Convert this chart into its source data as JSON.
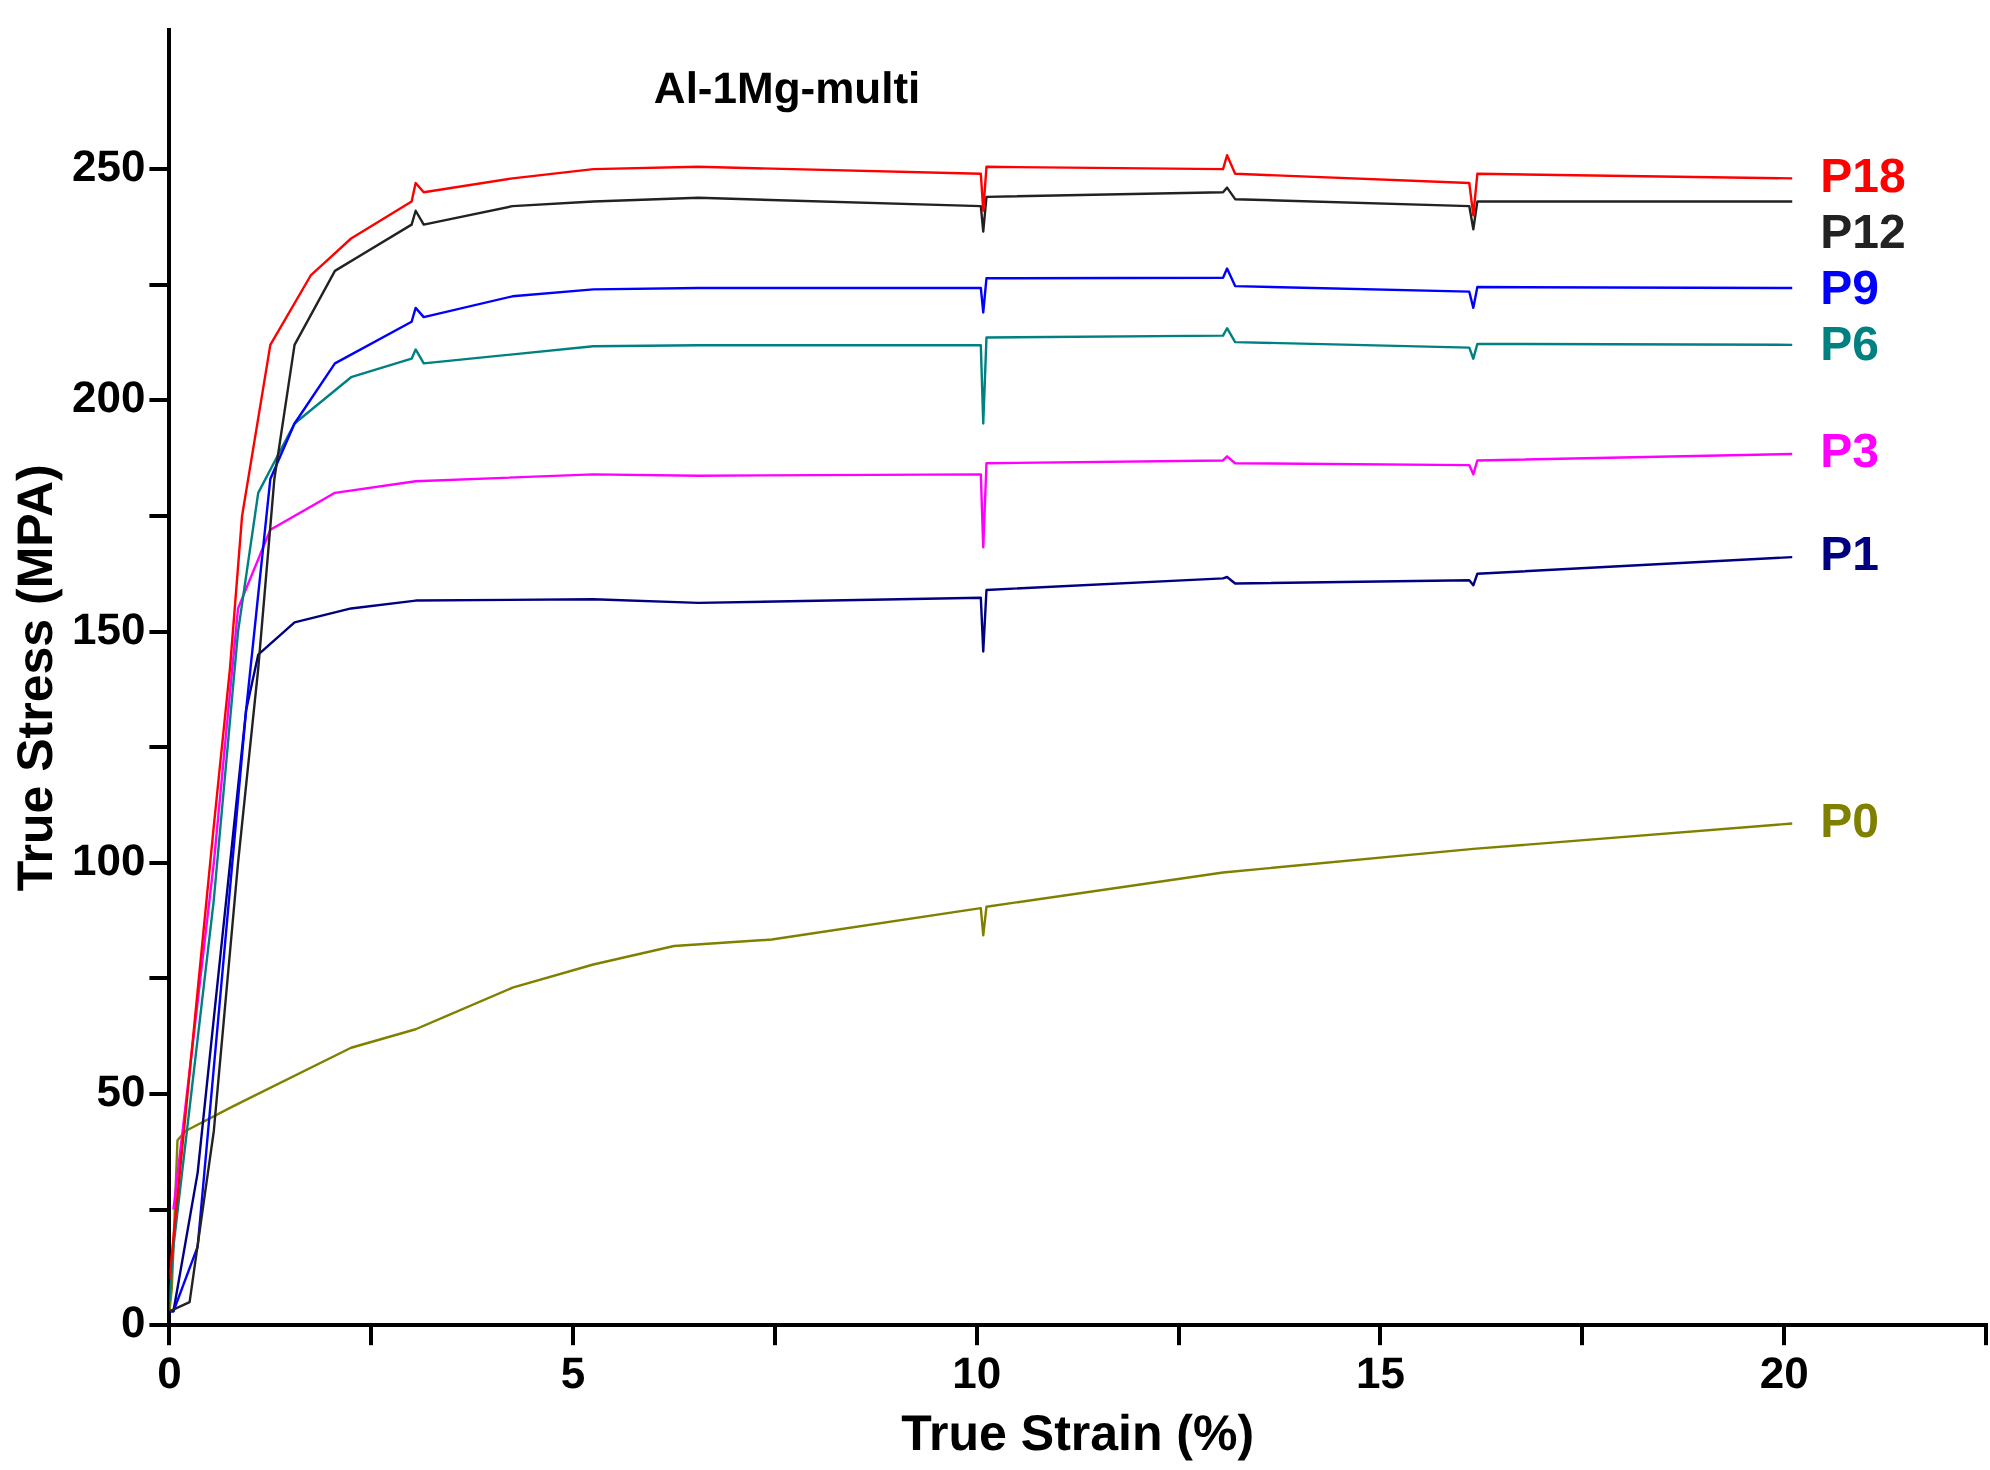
{
  "chart_data": {
    "type": "line",
    "title": "Al-1Mg-multi",
    "xlabel": "True Strain (%)",
    "ylabel": "True Stress (MPA)",
    "xlim": [
      0,
      22.5
    ],
    "ylim": [
      0,
      280
    ],
    "xticks": [
      0,
      {
        "value": 2.5,
        "label": null
      },
      5,
      {
        "value": 7.5,
        "label": null
      },
      10,
      {
        "value": 12.5,
        "label": null
      },
      15,
      {
        "value": 17.5,
        "label": null
      },
      20,
      {
        "value": 22.5,
        "label": null
      }
    ],
    "yticks": [
      0,
      {
        "value": 25,
        "label": null
      },
      50,
      {
        "value": 75,
        "label": null
      },
      100,
      {
        "value": 125,
        "label": null
      },
      150,
      {
        "value": 175,
        "label": null
      },
      200,
      {
        "value": 225,
        "label": null
      },
      250
    ],
    "grid": false,
    "legend": false,
    "marker": "none",
    "line_style": "solid",
    "series": [
      {
        "name": "P18",
        "color": "#ff0000",
        "x": [
          0,
          0.55,
          0.75,
          0.9,
          1.25,
          1.75,
          2.25,
          3.0,
          3.05,
          3.15,
          4.25,
          5.25,
          6.55,
          10.05,
          10.08,
          10.12,
          13.05,
          13.1,
          13.2,
          16.1,
          16.15,
          16.2,
          20.1
        ],
        "values": [
          10,
          108,
          142,
          175,
          212,
          227,
          235,
          243,
          247,
          245,
          248,
          250,
          250.5,
          249,
          241,
          250.5,
          250,
          253,
          249,
          247,
          240,
          249,
          248
        ]
      },
      {
        "name": "P12",
        "color": "#222222",
        "x": [
          0,
          0.25,
          0.55,
          0.85,
          1.1,
          1.3,
          1.55,
          2.05,
          3.0,
          3.05,
          3.15,
          4.25,
          5.25,
          6.55,
          10.05,
          10.08,
          10.12,
          13.05,
          13.1,
          13.2,
          16.1,
          16.15,
          16.2,
          20.1
        ],
        "values": [
          3,
          5,
          42,
          100,
          142,
          183,
          212,
          228,
          238,
          241,
          238,
          242,
          243,
          243.8,
          242,
          236.5,
          244,
          245,
          246,
          243.5,
          242,
          237,
          243,
          243
        ]
      },
      {
        "name": "P9",
        "color": "#0000ff",
        "x": [
          0,
          0.05,
          0.35,
          0.65,
          0.95,
          1.25,
          1.55,
          2.05,
          3.0,
          3.05,
          3.15,
          4.25,
          5.25,
          6.55,
          10.05,
          10.08,
          10.12,
          13.05,
          13.1,
          13.2,
          16.1,
          16.15,
          16.2,
          20.1
        ],
        "values": [
          3,
          3,
          17,
          75,
          133,
          183,
          195,
          208,
          217,
          220,
          218,
          222.5,
          224,
          224.3,
          224.3,
          219,
          226.4,
          226.5,
          228.5,
          224.7,
          223.5,
          220,
          224.5,
          224.3
        ]
      },
      {
        "name": "P6",
        "color": "#008080",
        "x": [
          0,
          0.05,
          0.55,
          0.85,
          1.1,
          1.55,
          2.25,
          3.0,
          3.05,
          3.15,
          5.25,
          6.55,
          10.05,
          10.08,
          10.12,
          13.05,
          13.1,
          13.2,
          16.1,
          16.15,
          16.2,
          20.1
        ],
        "values": [
          5,
          17,
          92,
          150,
          180,
          195,
          205,
          209,
          211,
          208,
          211.7,
          211.9,
          211.9,
          195,
          213.6,
          214,
          215.6,
          212.6,
          211.4,
          209,
          212.2,
          212
        ]
      },
      {
        "name": "P3",
        "color": "#ff00ff",
        "x": [
          0.05,
          0.55,
          0.85,
          1.25,
          2.05,
          3.05,
          5.25,
          6.55,
          10.05,
          10.08,
          10.12,
          13.05,
          13.1,
          13.2,
          16.1,
          16.15,
          16.2,
          20.1
        ],
        "values": [
          25,
          100,
          155,
          172,
          180,
          182.5,
          184,
          183.7,
          184,
          168.2,
          186.4,
          187,
          187.9,
          186.4,
          186,
          184,
          187,
          188.4
        ]
      },
      {
        "name": "P1",
        "color": "#000080",
        "x": [
          0,
          0.05,
          0.35,
          0.65,
          0.95,
          1.1,
          1.55,
          2.25,
          3.05,
          5.25,
          6.55,
          10.05,
          10.08,
          10.12,
          13.05,
          13.1,
          13.2,
          16.1,
          16.15,
          16.2,
          20.1
        ],
        "values": [
          3,
          3,
          33,
          83,
          133,
          145,
          152,
          155,
          156.7,
          157,
          156.2,
          157.3,
          145.7,
          159,
          161.5,
          161.8,
          160.4,
          161.1,
          160,
          162.5,
          166.1
        ]
      },
      {
        "name": "P0",
        "color": "#808000",
        "x": [
          0,
          0.03,
          0.1,
          0.2,
          0.75,
          2.25,
          3.05,
          4.25,
          5.25,
          6.25,
          7.46,
          10.05,
          10.08,
          10.12,
          13.05,
          16.15,
          20.1
        ],
        "values": [
          3,
          8,
          40,
          42,
          47,
          60,
          64,
          73,
          78,
          82,
          83.4,
          90.2,
          84.3,
          90.5,
          97.9,
          103,
          108.5
        ]
      }
    ]
  }
}
